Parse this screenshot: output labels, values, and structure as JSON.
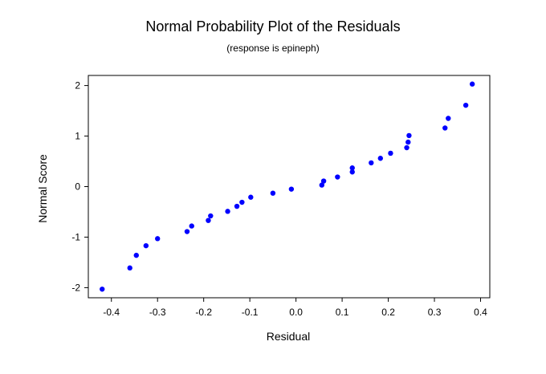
{
  "chart_data": {
    "type": "scatter",
    "title": "Normal Probability Plot of the Residuals",
    "subtitle": "(response is epineph)",
    "xlabel": "Residual",
    "ylabel": "Normal Score",
    "xlim": [
      -0.45,
      0.42
    ],
    "ylim": [
      -2.2,
      2.2
    ],
    "xticks": [
      -0.4,
      -0.3,
      -0.2,
      -0.1,
      0.0,
      0.1,
      0.2,
      0.3,
      0.4
    ],
    "xtick_labels": [
      "-0.4",
      "-0.3",
      "-0.2",
      "-0.1",
      "0.0",
      "0.1",
      "0.2",
      "0.3",
      "0.4"
    ],
    "yticks": [
      -2,
      -1,
      0,
      1,
      2
    ],
    "ytick_labels": [
      "-2",
      "-1",
      "0",
      "1",
      "2"
    ],
    "grid": false,
    "point_color": "#0000ff",
    "points": [
      {
        "x": -0.42,
        "y": -2.03
      },
      {
        "x": -0.36,
        "y": -1.61
      },
      {
        "x": -0.346,
        "y": -1.36
      },
      {
        "x": -0.325,
        "y": -1.17
      },
      {
        "x": -0.3,
        "y": -1.03
      },
      {
        "x": -0.236,
        "y": -0.89
      },
      {
        "x": -0.226,
        "y": -0.78
      },
      {
        "x": -0.19,
        "y": -0.67
      },
      {
        "x": -0.185,
        "y": -0.58
      },
      {
        "x": -0.148,
        "y": -0.49
      },
      {
        "x": -0.128,
        "y": -0.39
      },
      {
        "x": -0.117,
        "y": -0.31
      },
      {
        "x": -0.098,
        "y": -0.21
      },
      {
        "x": -0.05,
        "y": -0.13
      },
      {
        "x": -0.01,
        "y": -0.05
      },
      {
        "x": 0.056,
        "y": 0.03
      },
      {
        "x": 0.06,
        "y": 0.11
      },
      {
        "x": 0.09,
        "y": 0.19
      },
      {
        "x": 0.122,
        "y": 0.29
      },
      {
        "x": 0.122,
        "y": 0.37
      },
      {
        "x": 0.163,
        "y": 0.47
      },
      {
        "x": 0.183,
        "y": 0.56
      },
      {
        "x": 0.205,
        "y": 0.66
      },
      {
        "x": 0.24,
        "y": 0.77
      },
      {
        "x": 0.243,
        "y": 0.88
      },
      {
        "x": 0.245,
        "y": 1.01
      },
      {
        "x": 0.323,
        "y": 1.16
      },
      {
        "x": 0.33,
        "y": 1.35
      },
      {
        "x": 0.368,
        "y": 1.61
      },
      {
        "x": 0.382,
        "y": 2.03
      }
    ]
  }
}
